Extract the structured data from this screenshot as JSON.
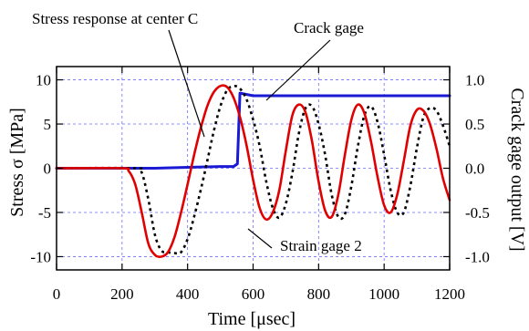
{
  "chart_data": {
    "type": "line",
    "xlabel": "Time [μsec]",
    "ylabel": "Stress σ [MPa]",
    "y2label": "Crack gage output  [V]",
    "xlim": [
      0,
      1200
    ],
    "ylim": [
      -11.5,
      11.5
    ],
    "y2lim": [
      -1.15,
      1.15
    ],
    "x_ticks": [
      "0",
      "200",
      "400",
      "600",
      "800",
      "1000",
      "1200"
    ],
    "y_ticks": [
      "10",
      "5",
      "0",
      "-5",
      "-10"
    ],
    "y2_ticks": [
      "1.0",
      "0.5",
      "0.0",
      "-0.5",
      "-1.0"
    ],
    "grid": true,
    "series": [
      {
        "name": "Stress response at center C",
        "axis": "left",
        "style": "solid",
        "color": "#e00000",
        "points": [
          [
            0,
            0
          ],
          [
            200,
            0
          ],
          [
            220,
            -0.3
          ],
          [
            240,
            -1.8
          ],
          [
            260,
            -5
          ],
          [
            280,
            -8.5
          ],
          [
            300,
            -9.8
          ],
          [
            320,
            -10
          ],
          [
            340,
            -9.5
          ],
          [
            360,
            -7.8
          ],
          [
            380,
            -5
          ],
          [
            400,
            -1.8
          ],
          [
            420,
            1.5
          ],
          [
            440,
            4.5
          ],
          [
            460,
            7
          ],
          [
            480,
            8.6
          ],
          [
            500,
            9.3
          ],
          [
            520,
            9.2
          ],
          [
            540,
            8
          ],
          [
            560,
            5.8
          ],
          [
            580,
            2.6
          ],
          [
            600,
            -1.3
          ],
          [
            620,
            -4.5
          ],
          [
            640,
            -5.8
          ],
          [
            660,
            -5
          ],
          [
            680,
            -2.5
          ],
          [
            700,
            2
          ],
          [
            720,
            6
          ],
          [
            740,
            7.2
          ],
          [
            760,
            6.3
          ],
          [
            780,
            3
          ],
          [
            800,
            -1.5
          ],
          [
            820,
            -4.8
          ],
          [
            840,
            -5.5
          ],
          [
            860,
            -3
          ],
          [
            880,
            1.5
          ],
          [
            900,
            5.5
          ],
          [
            920,
            7.2
          ],
          [
            940,
            6.2
          ],
          [
            960,
            3
          ],
          [
            980,
            -1
          ],
          [
            1000,
            -4.2
          ],
          [
            1020,
            -5
          ],
          [
            1040,
            -3
          ],
          [
            1060,
            0.8
          ],
          [
            1080,
            4.8
          ],
          [
            1100,
            6.6
          ],
          [
            1120,
            6.5
          ],
          [
            1140,
            5
          ],
          [
            1160,
            2.2
          ],
          [
            1180,
            -1.2
          ],
          [
            1200,
            -3.6
          ]
        ]
      },
      {
        "name": "Strain gage 2",
        "axis": "left",
        "style": "dotted",
        "color": "#000000",
        "points": [
          [
            0,
            0
          ],
          [
            240,
            0
          ],
          [
            260,
            -0.5
          ],
          [
            280,
            -3.5
          ],
          [
            300,
            -7.5
          ],
          [
            320,
            -9.3
          ],
          [
            340,
            -9.5
          ],
          [
            360,
            -9.6
          ],
          [
            380,
            -9.5
          ],
          [
            400,
            -8
          ],
          [
            420,
            -5.5
          ],
          [
            440,
            -2.5
          ],
          [
            460,
            0.8
          ],
          [
            480,
            4.2
          ],
          [
            500,
            7
          ],
          [
            520,
            8.8
          ],
          [
            540,
            9.3
          ],
          [
            560,
            9
          ],
          [
            580,
            7.8
          ],
          [
            600,
            5.5
          ],
          [
            620,
            2.5
          ],
          [
            640,
            -1.5
          ],
          [
            660,
            -4.5
          ],
          [
            680,
            -5.6
          ],
          [
            700,
            -4
          ],
          [
            720,
            -0.5
          ],
          [
            740,
            4
          ],
          [
            760,
            6.8
          ],
          [
            780,
            7
          ],
          [
            800,
            5
          ],
          [
            820,
            1.5
          ],
          [
            840,
            -3
          ],
          [
            860,
            -5.5
          ],
          [
            880,
            -5.2
          ],
          [
            900,
            -2
          ],
          [
            920,
            2.5
          ],
          [
            940,
            6
          ],
          [
            960,
            7
          ],
          [
            980,
            5.2
          ],
          [
            1000,
            1.5
          ],
          [
            1020,
            -2.5
          ],
          [
            1040,
            -5
          ],
          [
            1060,
            -5
          ],
          [
            1080,
            -2
          ],
          [
            1100,
            2.3
          ],
          [
            1120,
            5.8
          ],
          [
            1140,
            6.8
          ],
          [
            1160,
            6.5
          ],
          [
            1180,
            4.8
          ],
          [
            1200,
            2.5
          ]
        ]
      },
      {
        "name": "Crack gage",
        "axis": "right",
        "style": "solid",
        "color": "#1a1ad4",
        "points": [
          [
            0,
            0
          ],
          [
            100,
            0
          ],
          [
            200,
            0
          ],
          [
            300,
            0
          ],
          [
            400,
            0.01
          ],
          [
            500,
            0.02
          ],
          [
            540,
            0.02
          ],
          [
            552,
            0.05
          ],
          [
            560,
            0.85
          ],
          [
            600,
            0.82
          ],
          [
            700,
            0.82
          ],
          [
            800,
            0.82
          ],
          [
            900,
            0.82
          ],
          [
            1000,
            0.82
          ],
          [
            1100,
            0.82
          ],
          [
            1200,
            0.82
          ]
        ]
      }
    ],
    "annotations": [
      {
        "text": "Stress response at center C",
        "target_series": "Stress response at center C"
      },
      {
        "text": "Crack gage",
        "target_series": "Crack gage"
      },
      {
        "text": "Strain gage 2",
        "target_series": "Strain gage 2"
      }
    ]
  }
}
